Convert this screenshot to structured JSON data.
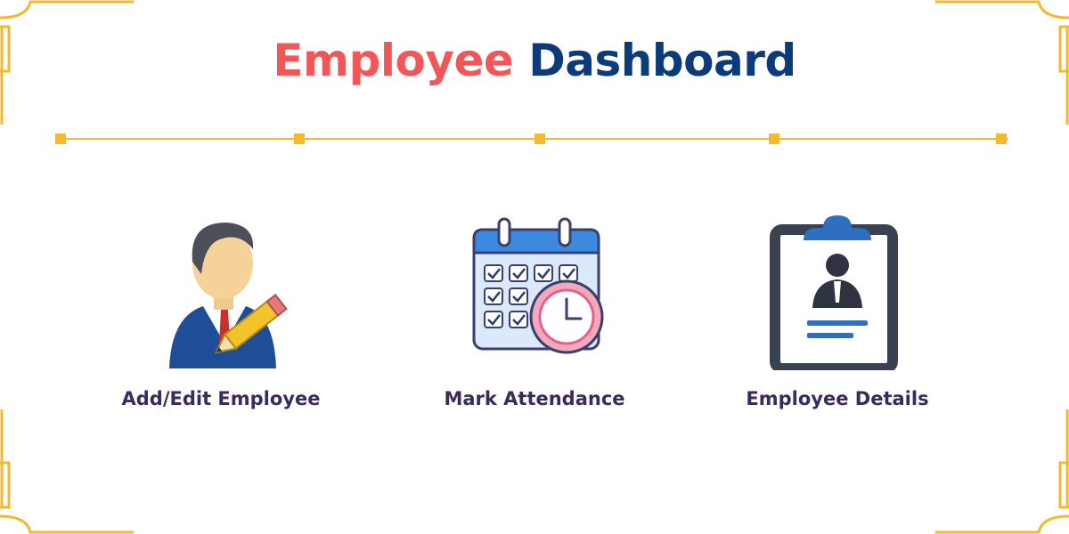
{
  "header": {
    "title_part1": "Employee",
    "title_part2": "Dashboard"
  },
  "colors": {
    "title_accent": "#f25757",
    "title_primary": "#0c3b7c",
    "frame": "#f5b82e",
    "timeline": "#f5b82e",
    "label": "#3c2a5c"
  },
  "cards": [
    {
      "label": "Add/Edit Employee",
      "icon": "employee-edit-icon"
    },
    {
      "label": "Mark Attendance",
      "icon": "attendance-calendar-icon"
    },
    {
      "label": "Employee Details",
      "icon": "employee-clipboard-icon"
    }
  ]
}
